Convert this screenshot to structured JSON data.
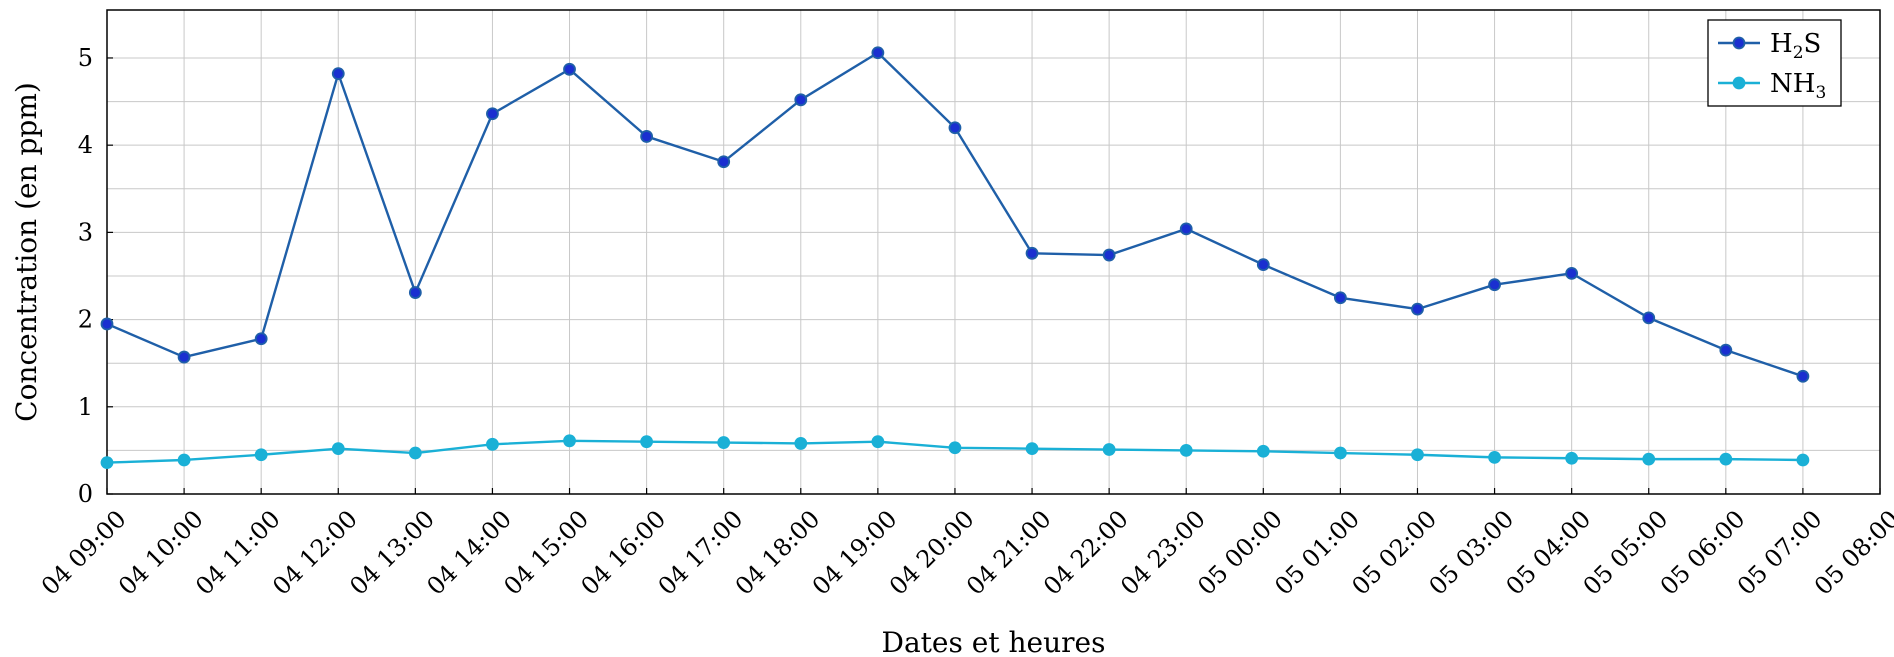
{
  "chart_data": {
    "type": "line",
    "x": [
      "04 09:00",
      "04 10:00",
      "04 11:00",
      "04 12:00",
      "04 13:00",
      "04 14:00",
      "04 15:00",
      "04 16:00",
      "04 17:00",
      "04 18:00",
      "04 19:00",
      "04 20:00",
      "04 21:00",
      "04 22:00",
      "04 23:00",
      "05 00:00",
      "05 01:00",
      "05 02:00",
      "05 03:00",
      "05 04:00",
      "05 05:00",
      "05 06:00",
      "05 07:00"
    ],
    "x_ticks": [
      "04 09:00",
      "04 10:00",
      "04 11:00",
      "04 12:00",
      "04 13:00",
      "04 14:00",
      "04 15:00",
      "04 16:00",
      "04 17:00",
      "04 18:00",
      "04 19:00",
      "04 20:00",
      "04 21:00",
      "04 22:00",
      "04 23:00",
      "05 00:00",
      "05 01:00",
      "05 02:00",
      "05 03:00",
      "05 04:00",
      "05 05:00",
      "05 06:00",
      "05 07:00",
      "05 08:00"
    ],
    "series": [
      {
        "name": "H2S",
        "name_main": "H",
        "name_sub": "2",
        "name_tail": "S",
        "color": "#1f5fa8",
        "marker_fill": "#1a2fd0",
        "values": [
          1.95,
          1.57,
          1.78,
          4.82,
          2.31,
          4.36,
          4.87,
          4.1,
          3.81,
          4.52,
          5.06,
          4.2,
          2.76,
          2.74,
          3.04,
          2.63,
          2.25,
          2.12,
          2.4,
          2.53,
          2.02,
          1.65,
          1.35
        ]
      },
      {
        "name": "NH3",
        "name_main": "NH",
        "name_sub": "3",
        "name_tail": "",
        "color": "#1ab0d6",
        "marker_fill": "#1ab0d6",
        "values": [
          0.36,
          0.39,
          0.45,
          0.52,
          0.47,
          0.57,
          0.61,
          0.6,
          0.59,
          0.58,
          0.6,
          0.53,
          0.52,
          0.51,
          0.5,
          0.49,
          0.47,
          0.45,
          0.42,
          0.41,
          0.4,
          0.4,
          0.39
        ]
      }
    ],
    "xlabel": "Dates et heures",
    "ylabel": "Concentration (en ppm)",
    "ylim": [
      0,
      5.55
    ],
    "yticks": [
      0,
      1,
      2,
      3,
      4,
      5
    ],
    "grid": true,
    "legend_position": "top-right"
  }
}
